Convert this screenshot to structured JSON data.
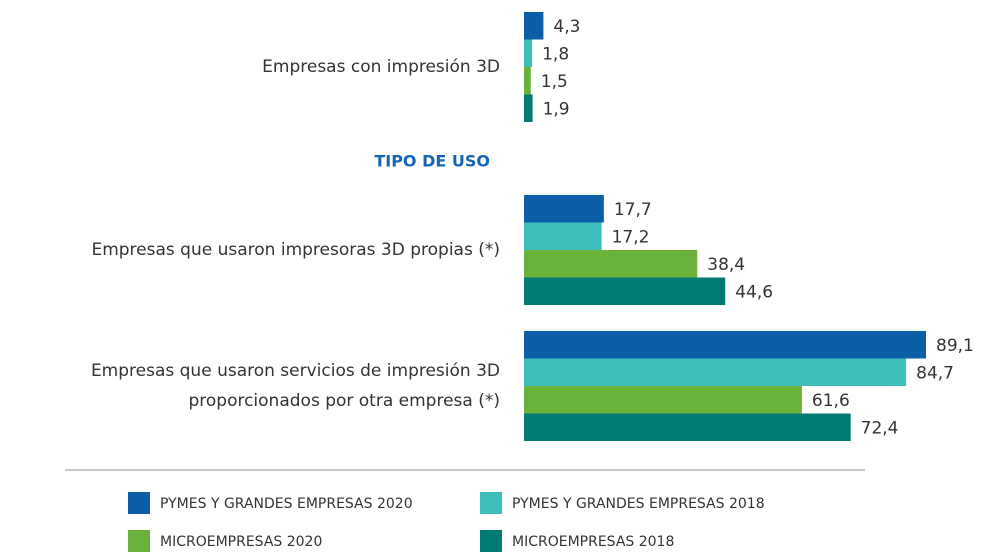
{
  "chart_data": {
    "type": "hbar",
    "categories": [
      "Empresas con impresión 3D",
      "Empresas que usaron impresoras 3D propias (*)",
      "Empresas que usaron servicios de impresión 3D proporcionados por otra empresa (*)"
    ],
    "annotation": "TIPO DE USO",
    "series": [
      {
        "name": "PYMES Y GRANDES EMPRESAS 2020",
        "color": "#0b5fa7",
        "values": [
          4.3,
          17.7,
          89.1
        ],
        "value_labels": [
          "4,3",
          "17,7",
          "89,1"
        ]
      },
      {
        "name": "PYMES Y GRANDES EMPRESAS 2018",
        "color": "#3fbdbb",
        "values": [
          1.8,
          17.2,
          84.7
        ],
        "value_labels": [
          "1,8",
          "17,2",
          "84,7"
        ]
      },
      {
        "name": "MICROEMPRESAS 2020",
        "color": "#6bb23b",
        "values": [
          1.5,
          38.4,
          61.6
        ],
        "value_labels": [
          "1,5",
          "38,4",
          "61,6"
        ]
      },
      {
        "name": "MICROEMPRESAS 2018",
        "color": "#007b73",
        "values": [
          1.9,
          44.6,
          72.4
        ],
        "value_labels": [
          "1,9",
          "44,6",
          "72,4"
        ]
      }
    ]
  }
}
